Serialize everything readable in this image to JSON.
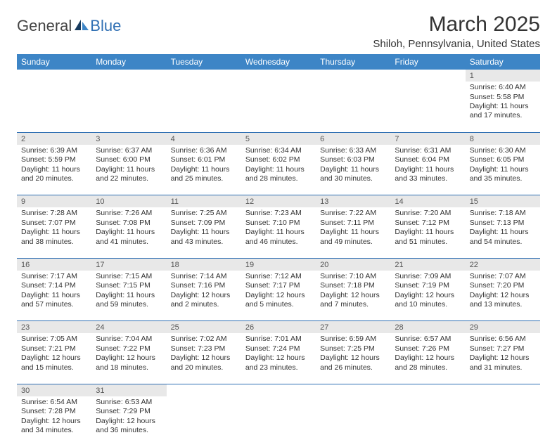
{
  "logo": {
    "text1": "General",
    "text2": "Blue"
  },
  "title": "March 2025",
  "location": "Shiloh, Pennsylvania, United States",
  "colors": {
    "header_bg": "#3d85c6",
    "header_fg": "#ffffff",
    "daynum_bg": "#e8e8e8",
    "border": "#2f6fb3",
    "logo_blue": "#2f6fb3"
  },
  "weekdays": [
    "Sunday",
    "Monday",
    "Tuesday",
    "Wednesday",
    "Thursday",
    "Friday",
    "Saturday"
  ],
  "labels": {
    "sunrise": "Sunrise: ",
    "sunset": "Sunset: ",
    "daylight": "Daylight: "
  },
  "weeks": [
    [
      null,
      null,
      null,
      null,
      null,
      null,
      {
        "n": "1",
        "sr": "6:40 AM",
        "ss": "5:58 PM",
        "dl": "11 hours and 17 minutes."
      }
    ],
    [
      {
        "n": "2",
        "sr": "6:39 AM",
        "ss": "5:59 PM",
        "dl": "11 hours and 20 minutes."
      },
      {
        "n": "3",
        "sr": "6:37 AM",
        "ss": "6:00 PM",
        "dl": "11 hours and 22 minutes."
      },
      {
        "n": "4",
        "sr": "6:36 AM",
        "ss": "6:01 PM",
        "dl": "11 hours and 25 minutes."
      },
      {
        "n": "5",
        "sr": "6:34 AM",
        "ss": "6:02 PM",
        "dl": "11 hours and 28 minutes."
      },
      {
        "n": "6",
        "sr": "6:33 AM",
        "ss": "6:03 PM",
        "dl": "11 hours and 30 minutes."
      },
      {
        "n": "7",
        "sr": "6:31 AM",
        "ss": "6:04 PM",
        "dl": "11 hours and 33 minutes."
      },
      {
        "n": "8",
        "sr": "6:30 AM",
        "ss": "6:05 PM",
        "dl": "11 hours and 35 minutes."
      }
    ],
    [
      {
        "n": "9",
        "sr": "7:28 AM",
        "ss": "7:07 PM",
        "dl": "11 hours and 38 minutes."
      },
      {
        "n": "10",
        "sr": "7:26 AM",
        "ss": "7:08 PM",
        "dl": "11 hours and 41 minutes."
      },
      {
        "n": "11",
        "sr": "7:25 AM",
        "ss": "7:09 PM",
        "dl": "11 hours and 43 minutes."
      },
      {
        "n": "12",
        "sr": "7:23 AM",
        "ss": "7:10 PM",
        "dl": "11 hours and 46 minutes."
      },
      {
        "n": "13",
        "sr": "7:22 AM",
        "ss": "7:11 PM",
        "dl": "11 hours and 49 minutes."
      },
      {
        "n": "14",
        "sr": "7:20 AM",
        "ss": "7:12 PM",
        "dl": "11 hours and 51 minutes."
      },
      {
        "n": "15",
        "sr": "7:18 AM",
        "ss": "7:13 PM",
        "dl": "11 hours and 54 minutes."
      }
    ],
    [
      {
        "n": "16",
        "sr": "7:17 AM",
        "ss": "7:14 PM",
        "dl": "11 hours and 57 minutes."
      },
      {
        "n": "17",
        "sr": "7:15 AM",
        "ss": "7:15 PM",
        "dl": "11 hours and 59 minutes."
      },
      {
        "n": "18",
        "sr": "7:14 AM",
        "ss": "7:16 PM",
        "dl": "12 hours and 2 minutes."
      },
      {
        "n": "19",
        "sr": "7:12 AM",
        "ss": "7:17 PM",
        "dl": "12 hours and 5 minutes."
      },
      {
        "n": "20",
        "sr": "7:10 AM",
        "ss": "7:18 PM",
        "dl": "12 hours and 7 minutes."
      },
      {
        "n": "21",
        "sr": "7:09 AM",
        "ss": "7:19 PM",
        "dl": "12 hours and 10 minutes."
      },
      {
        "n": "22",
        "sr": "7:07 AM",
        "ss": "7:20 PM",
        "dl": "12 hours and 13 minutes."
      }
    ],
    [
      {
        "n": "23",
        "sr": "7:05 AM",
        "ss": "7:21 PM",
        "dl": "12 hours and 15 minutes."
      },
      {
        "n": "24",
        "sr": "7:04 AM",
        "ss": "7:22 PM",
        "dl": "12 hours and 18 minutes."
      },
      {
        "n": "25",
        "sr": "7:02 AM",
        "ss": "7:23 PM",
        "dl": "12 hours and 20 minutes."
      },
      {
        "n": "26",
        "sr": "7:01 AM",
        "ss": "7:24 PM",
        "dl": "12 hours and 23 minutes."
      },
      {
        "n": "27",
        "sr": "6:59 AM",
        "ss": "7:25 PM",
        "dl": "12 hours and 26 minutes."
      },
      {
        "n": "28",
        "sr": "6:57 AM",
        "ss": "7:26 PM",
        "dl": "12 hours and 28 minutes."
      },
      {
        "n": "29",
        "sr": "6:56 AM",
        "ss": "7:27 PM",
        "dl": "12 hours and 31 minutes."
      }
    ],
    [
      {
        "n": "30",
        "sr": "6:54 AM",
        "ss": "7:28 PM",
        "dl": "12 hours and 34 minutes."
      },
      {
        "n": "31",
        "sr": "6:53 AM",
        "ss": "7:29 PM",
        "dl": "12 hours and 36 minutes."
      },
      null,
      null,
      null,
      null,
      null
    ]
  ]
}
